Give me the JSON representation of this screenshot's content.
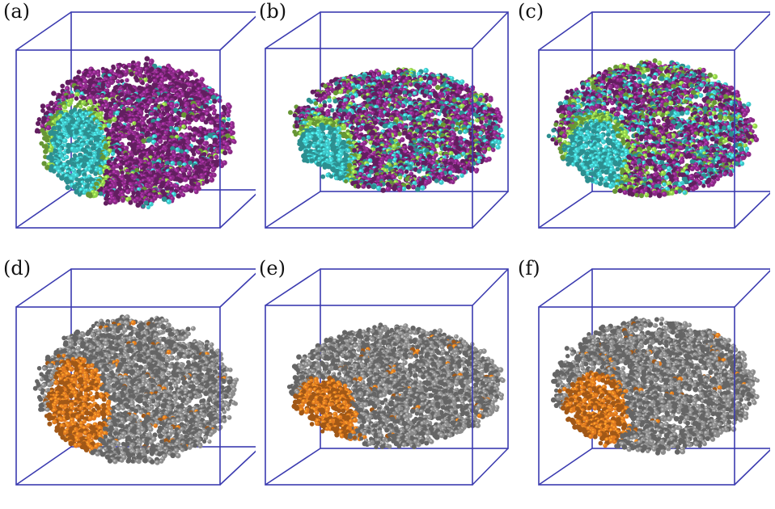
{
  "figure": {
    "panels": [
      {
        "label": "(a)",
        "kind": "colored",
        "variant": 0
      },
      {
        "label": "(b)",
        "kind": "colored",
        "variant": 1
      },
      {
        "label": "(c)",
        "kind": "colored",
        "variant": 2
      },
      {
        "label": "(d)",
        "kind": "gray",
        "variant": 0
      },
      {
        "label": "(e)",
        "kind": "gray",
        "variant": 1
      },
      {
        "label": "(f)",
        "kind": "gray",
        "variant": 2
      }
    ],
    "colors": {
      "box_edge": "#3b3bb0",
      "purple": "#8a2a86",
      "cyan": "#3fc6c8",
      "green": "#8fd04a",
      "gray": "#8c8c8c",
      "orange": "#e07a20"
    }
  }
}
